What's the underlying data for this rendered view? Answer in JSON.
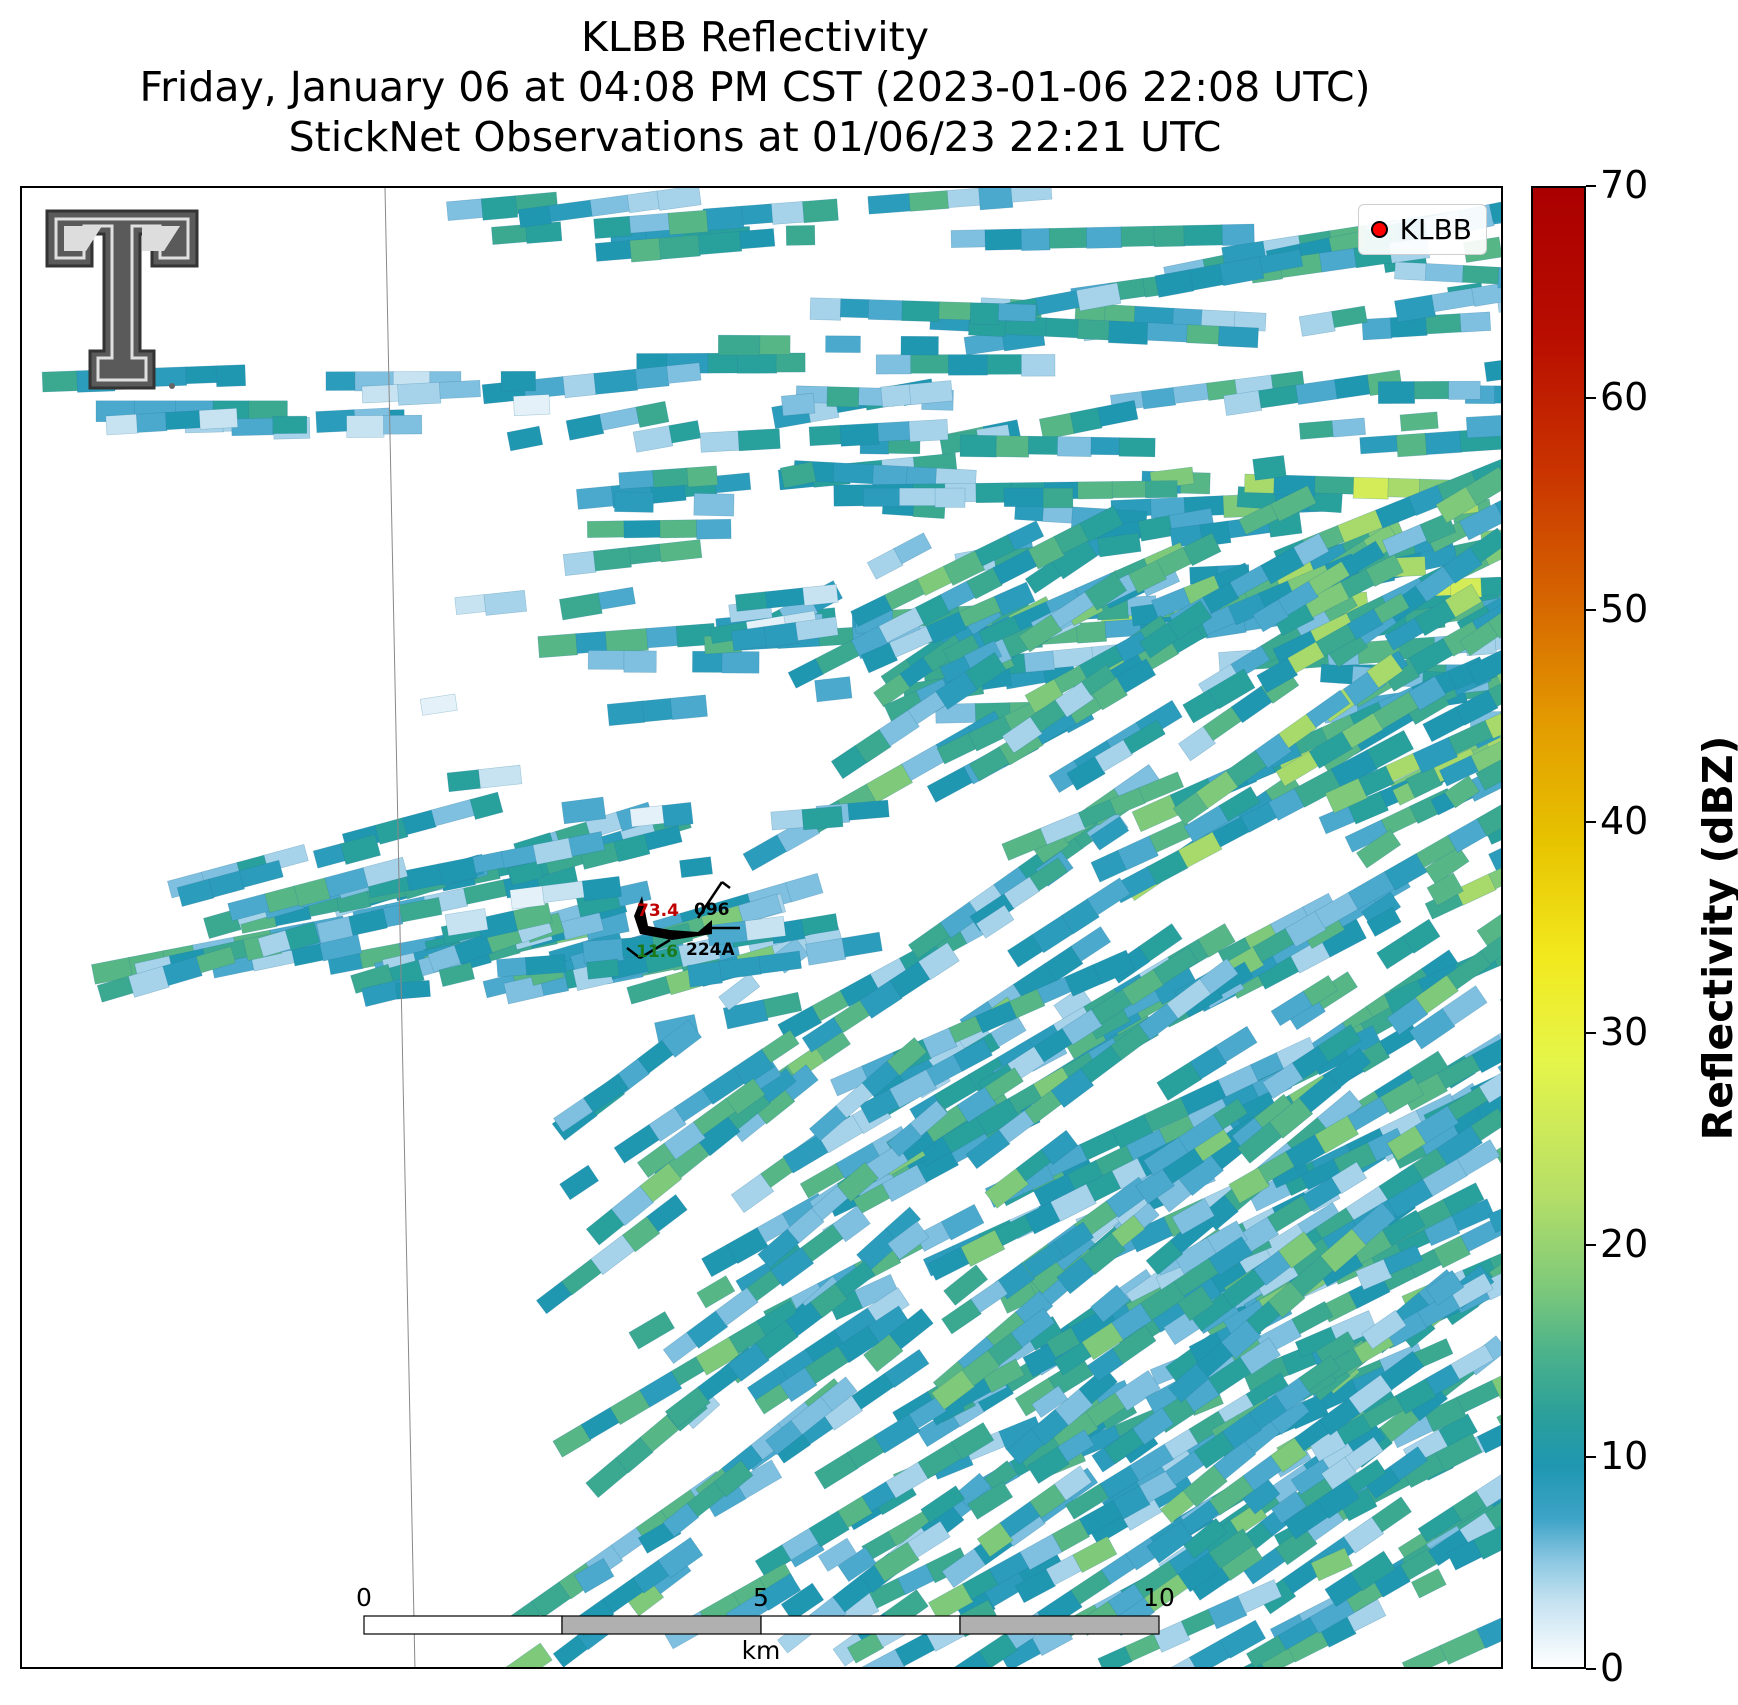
{
  "title": {
    "line1": "KLBB Reflectivity",
    "line2": "Friday, January 06 at 04:08 PM CST (2023-01-06 22:08 UTC)",
    "line3": "StickNet Observations at 01/06/23 22:21 UTC"
  },
  "legend": {
    "label": "KLBB",
    "marker_color": "#ff0000"
  },
  "station": {
    "temperature": "73.4",
    "pressure": "096",
    "dewpoint": "11.6",
    "id": "224A",
    "temperature_color": "#c00000",
    "dewpoint_color": "#1a7a1a"
  },
  "scale_bar": {
    "tick_0": "0",
    "tick_5": "5",
    "tick_10": "10",
    "unit": "km"
  },
  "colorbar": {
    "label": "Reflectivity (dBZ)",
    "ticks": [
      "0",
      "10",
      "20",
      "30",
      "40",
      "50",
      "60",
      "70"
    ],
    "min": 0,
    "max": 70
  },
  "chart_data": {
    "type": "heatmap",
    "variable": "Reflectivity",
    "units": "dBZ",
    "value_range": [
      0,
      70
    ],
    "typical_echo_range_dbz": [
      0,
      35
    ]
  },
  "colors": {
    "light_blue": "#a7d3ea",
    "blue": "#3ea4c7",
    "teal": "#1f97b1",
    "green": "#4db38a",
    "light_green": "#8fd070",
    "yellow_green": "#d8ef55"
  }
}
